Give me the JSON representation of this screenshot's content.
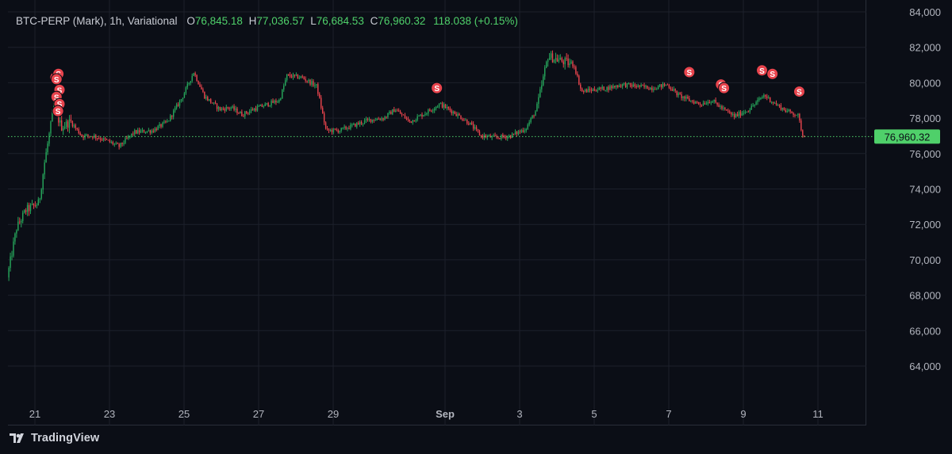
{
  "legend": {
    "symbol": "BTC-PERP (Mark), 1h, Variational",
    "open_label": "O",
    "open_value": "76,845.18",
    "high_label": "H",
    "high_value": "77,036.57",
    "low_label": "L",
    "low_value": "76,684.53",
    "close_label": "C",
    "close_value": "76,960.32",
    "change": "118.038 (+0.15%)"
  },
  "branding": {
    "name": "TradingView"
  },
  "colors": {
    "up": "#26a65b",
    "down": "#e8444d",
    "background": "#0b0e16",
    "grid": "#1c202b",
    "last_price": "#4fd06a",
    "marker": "#e8444d"
  },
  "chart_data": {
    "type": "candlestick",
    "title": "BTC-PERP (Mark), 1h, Variational",
    "ylim": [
      62000,
      84500
    ],
    "y_ticks": [
      "64,000",
      "66,000",
      "68,000",
      "70,000",
      "72,000",
      "74,000",
      "76,000",
      "78,000",
      "80,000",
      "82,000",
      "84,000"
    ],
    "x_ticks": [
      {
        "label": "21",
        "day": 0
      },
      {
        "label": "23",
        "day": 2
      },
      {
        "label": "25",
        "day": 4
      },
      {
        "label": "27",
        "day": 6
      },
      {
        "label": "29",
        "day": 8
      },
      {
        "label": "Sep",
        "day": 11,
        "bold": true
      },
      {
        "label": "3",
        "day": 13
      },
      {
        "label": "5",
        "day": 15
      },
      {
        "label": "7",
        "day": 17
      },
      {
        "label": "9",
        "day": 19
      },
      {
        "label": "11",
        "day": 21
      }
    ],
    "last_price": 76960.32,
    "last_price_label": "76,960.32",
    "path_knots": [
      [
        -0.7,
        69000
      ],
      [
        -0.45,
        71800
      ],
      [
        -0.2,
        72800
      ],
      [
        0.15,
        73200
      ],
      [
        0.3,
        75500
      ],
      [
        0.55,
        78600
      ],
      [
        0.75,
        77500
      ],
      [
        1.0,
        77800
      ],
      [
        1.3,
        77000
      ],
      [
        1.6,
        77000
      ],
      [
        2.0,
        76700
      ],
      [
        2.3,
        76400
      ],
      [
        2.7,
        77200
      ],
      [
        3.2,
        77300
      ],
      [
        3.6,
        77800
      ],
      [
        4.0,
        79200
      ],
      [
        4.3,
        80600
      ],
      [
        4.6,
        79200
      ],
      [
        5.0,
        78500
      ],
      [
        5.3,
        78600
      ],
      [
        5.6,
        78200
      ],
      [
        5.9,
        78500
      ],
      [
        6.3,
        78800
      ],
      [
        6.6,
        79000
      ],
      [
        6.8,
        80400
      ],
      [
        7.2,
        80300
      ],
      [
        7.6,
        79800
      ],
      [
        7.85,
        77300
      ],
      [
        8.2,
        77300
      ],
      [
        8.6,
        77600
      ],
      [
        9.0,
        77900
      ],
      [
        9.4,
        78000
      ],
      [
        9.7,
        78500
      ],
      [
        10.1,
        77800
      ],
      [
        10.6,
        78400
      ],
      [
        10.9,
        78800
      ],
      [
        11.3,
        78300
      ],
      [
        11.7,
        77700
      ],
      [
        12.0,
        77000
      ],
      [
        12.4,
        76900
      ],
      [
        12.8,
        77000
      ],
      [
        13.2,
        77400
      ],
      [
        13.5,
        78500
      ],
      [
        13.8,
        81500
      ],
      [
        14.2,
        81200
      ],
      [
        14.5,
        81000
      ],
      [
        14.7,
        79500
      ],
      [
        15.0,
        79600
      ],
      [
        15.4,
        79700
      ],
      [
        15.8,
        79900
      ],
      [
        16.2,
        79800
      ],
      [
        16.6,
        79700
      ],
      [
        17.0,
        79900
      ],
      [
        17.3,
        79300
      ],
      [
        17.6,
        79000
      ],
      [
        17.9,
        78800
      ],
      [
        18.2,
        79000
      ],
      [
        18.5,
        78500
      ],
      [
        18.8,
        78100
      ],
      [
        19.2,
        78500
      ],
      [
        19.6,
        79300
      ],
      [
        19.9,
        78800
      ],
      [
        20.2,
        78400
      ],
      [
        20.5,
        78200
      ],
      [
        20.65,
        76900
      ]
    ],
    "markers": [
      {
        "day": 0.55,
        "price": 80300,
        "label": "S"
      },
      {
        "day": 0.63,
        "price": 80500,
        "label": "S"
      },
      {
        "day": 0.58,
        "price": 80200,
        "label": "S"
      },
      {
        "day": 0.66,
        "price": 79600,
        "label": "S"
      },
      {
        "day": 0.58,
        "price": 79200,
        "label": "S"
      },
      {
        "day": 0.66,
        "price": 78800,
        "label": "S"
      },
      {
        "day": 0.62,
        "price": 78400,
        "label": "S"
      },
      {
        "day": 10.78,
        "price": 79700,
        "label": "S"
      },
      {
        "day": 17.55,
        "price": 80600,
        "label": "S"
      },
      {
        "day": 18.4,
        "price": 79900,
        "label": "S"
      },
      {
        "day": 18.48,
        "price": 79700,
        "label": "S"
      },
      {
        "day": 19.5,
        "price": 80700,
        "label": "S"
      },
      {
        "day": 19.78,
        "price": 80500,
        "label": "S"
      },
      {
        "day": 20.5,
        "price": 79500,
        "label": "S"
      }
    ]
  }
}
